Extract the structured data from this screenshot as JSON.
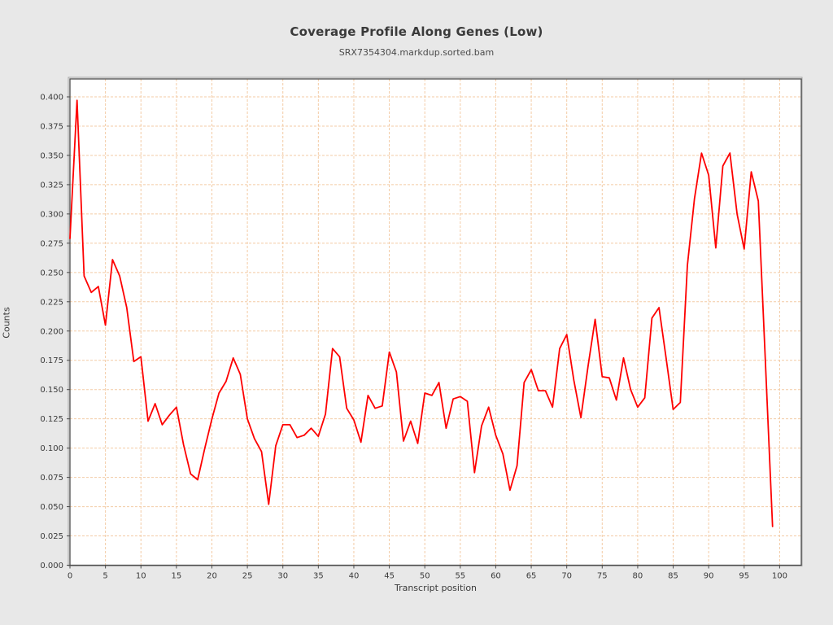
{
  "title": "Coverage Profile Along Genes (Low)",
  "subtitle": "SRX7354304.markdup.sorted.bam",
  "chart_data": {
    "type": "line",
    "title": "Coverage Profile Along Genes (Low)",
    "subtitle": "SRX7354304.markdup.sorted.bam",
    "xlabel": "Transcript position",
    "ylabel": "Counts",
    "xlim": [
      0,
      103
    ],
    "ylim": [
      0,
      0.415
    ],
    "x_ticks": [
      0,
      5,
      10,
      15,
      20,
      25,
      30,
      35,
      40,
      45,
      50,
      55,
      60,
      65,
      70,
      75,
      80,
      85,
      90,
      95,
      100
    ],
    "y_ticks": [
      0.0,
      0.025,
      0.05,
      0.075,
      0.1,
      0.125,
      0.15,
      0.175,
      0.2,
      0.225,
      0.25,
      0.275,
      0.3,
      0.325,
      0.35,
      0.375,
      0.4
    ],
    "y_tick_decimals": 3,
    "grid": "dashed, both axes, at every tick",
    "legend": "none",
    "x": "transcript position index 0..99 (one point per position)",
    "series": [
      {
        "name": "coverage",
        "color": "#fe0000",
        "values": [
          0.279,
          0.397,
          0.247,
          0.233,
          0.238,
          0.205,
          0.261,
          0.247,
          0.22,
          0.174,
          0.178,
          0.123,
          0.138,
          0.12,
          0.128,
          0.135,
          0.103,
          0.078,
          0.073,
          0.1,
          0.125,
          0.147,
          0.157,
          0.177,
          0.163,
          0.125,
          0.108,
          0.097,
          0.052,
          0.102,
          0.12,
          0.12,
          0.109,
          0.111,
          0.117,
          0.11,
          0.129,
          0.185,
          0.178,
          0.134,
          0.124,
          0.105,
          0.145,
          0.134,
          0.136,
          0.182,
          0.165,
          0.106,
          0.123,
          0.104,
          0.147,
          0.145,
          0.156,
          0.117,
          0.142,
          0.144,
          0.14,
          0.079,
          0.119,
          0.135,
          0.111,
          0.095,
          0.064,
          0.085,
          0.156,
          0.167,
          0.149,
          0.149,
          0.135,
          0.185,
          0.197,
          0.158,
          0.126,
          0.17,
          0.21,
          0.161,
          0.16,
          0.141,
          0.177,
          0.15,
          0.135,
          0.143,
          0.211,
          0.22,
          0.177,
          0.133,
          0.139,
          0.256,
          0.313,
          0.352,
          0.333,
          0.271,
          0.341,
          0.352,
          0.3,
          0.27,
          0.336,
          0.311,
          0.172,
          0.033
        ]
      }
    ],
    "colors": {
      "figure_background": "#e8e8e8",
      "plot_background": "#ffffff",
      "grid": "#f3cba5",
      "frame": "#4d4d4d",
      "frame_bevel": "#a8a8a8",
      "tick": "#4d4d4d",
      "tick_label": "#3a3a3a",
      "line": "#fe0000"
    }
  }
}
